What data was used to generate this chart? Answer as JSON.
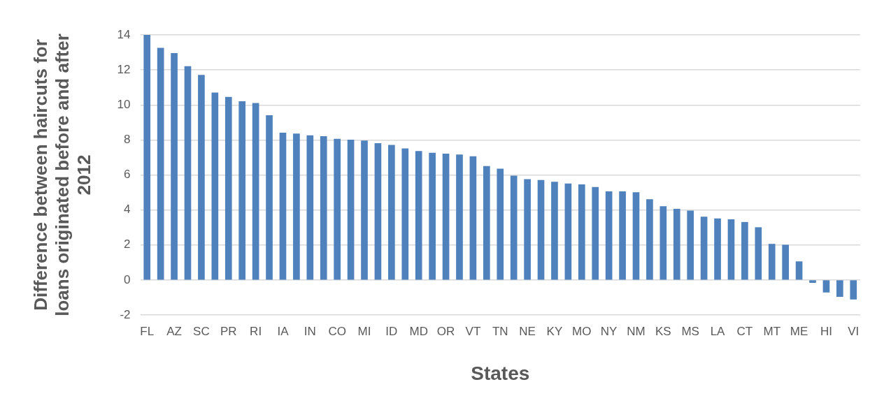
{
  "chart_data": {
    "type": "bar",
    "xlabel": "States",
    "ylabel": "Difference between haircuts for loans originated before and after 2012",
    "categories": [
      "FL",
      null,
      "AZ",
      null,
      "SC",
      null,
      "PR",
      null,
      "RI",
      null,
      "IA",
      null,
      "IN",
      null,
      "CO",
      null,
      "MI",
      null,
      "ID",
      null,
      "MD",
      null,
      "OR",
      null,
      "VT",
      null,
      "TN",
      null,
      "NE",
      null,
      "KY",
      null,
      "MO",
      null,
      "NY",
      null,
      "NM",
      null,
      "KS",
      null,
      "MS",
      null,
      "LA",
      null,
      "CT",
      null,
      "MT",
      null,
      "ME",
      null,
      "HI",
      null,
      "VI"
    ],
    "values": [
      14,
      13.25,
      12.95,
      12.2,
      11.7,
      10.7,
      10.45,
      10.2,
      10.1,
      9.4,
      8.4,
      8.35,
      8.25,
      8.2,
      8.05,
      8.0,
      7.95,
      7.8,
      7.7,
      7.5,
      7.35,
      7.25,
      7.2,
      7.15,
      7.05,
      6.5,
      6.35,
      5.95,
      5.75,
      5.7,
      5.6,
      5.5,
      5.45,
      5.3,
      5.05,
      5.05,
      5.0,
      4.6,
      4.2,
      4.05,
      3.95,
      3.6,
      3.5,
      3.45,
      3.3,
      3.0,
      2.05,
      2.0,
      1.05,
      -0.15,
      -0.7,
      -0.95,
      -1.1
    ],
    "color": "#4f81bd",
    "ylim": [
      -2,
      14
    ],
    "yticks": [
      -2,
      0,
      2,
      4,
      6,
      8,
      10,
      12,
      14
    ],
    "grid": "y",
    "legend": false
  }
}
